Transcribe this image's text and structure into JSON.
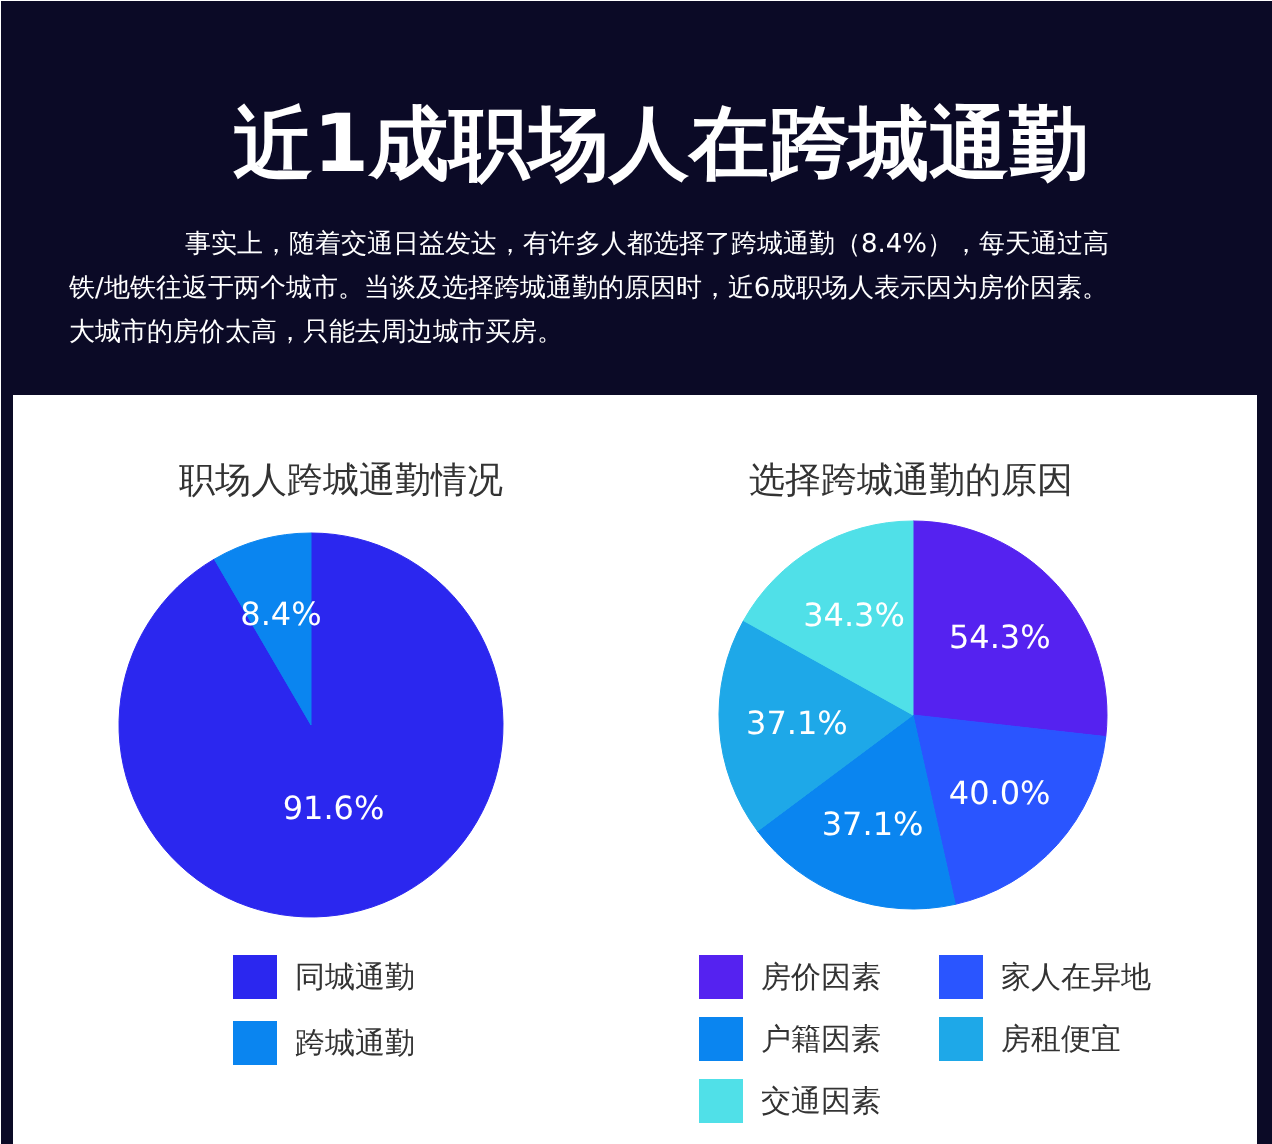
{
  "chart_data": [
    {
      "type": "other",
      "title": "近1成职场人在跨城通勤",
      "annotations": [
        "事实上，随着交通日益发达，有许多人都选择了跨城通勤（8.4%），每天通过高",
        "铁/地铁往返于两个城市。当谈及选择跨城通勤的原因时，近6成职场人表示因为房价因素。",
        "大城市的房价太高，只能去周边城市买房。"
      ]
    },
    {
      "type": "pie",
      "title": "职场人跨城通勤情况",
      "categories": [
        "同城通勤",
        "跨城通勤"
      ],
      "values": [
        91.6,
        8.4
      ],
      "colors": [
        "#2b27ef",
        "#0a85f0"
      ],
      "value_labels": [
        "91.6%",
        "8.4%"
      ],
      "legend": "bottom"
    },
    {
      "type": "pie",
      "title": "选择跨城通勤的原因",
      "categories": [
        "房价因素",
        "家人在异地",
        "户籍因素",
        "房租便宜",
        "交通因素"
      ],
      "values": [
        54.3,
        40.0,
        37.1,
        37.1,
        34.3
      ],
      "colors": [
        "#5522f0",
        "#2a55ff",
        "#0a85f0",
        "#1ea8e8",
        "#50e0e8"
      ],
      "value_labels": [
        "54.3%",
        "40.0%",
        "37.1%",
        "37.1%",
        "34.3%"
      ],
      "legend": "bottom"
    }
  ]
}
